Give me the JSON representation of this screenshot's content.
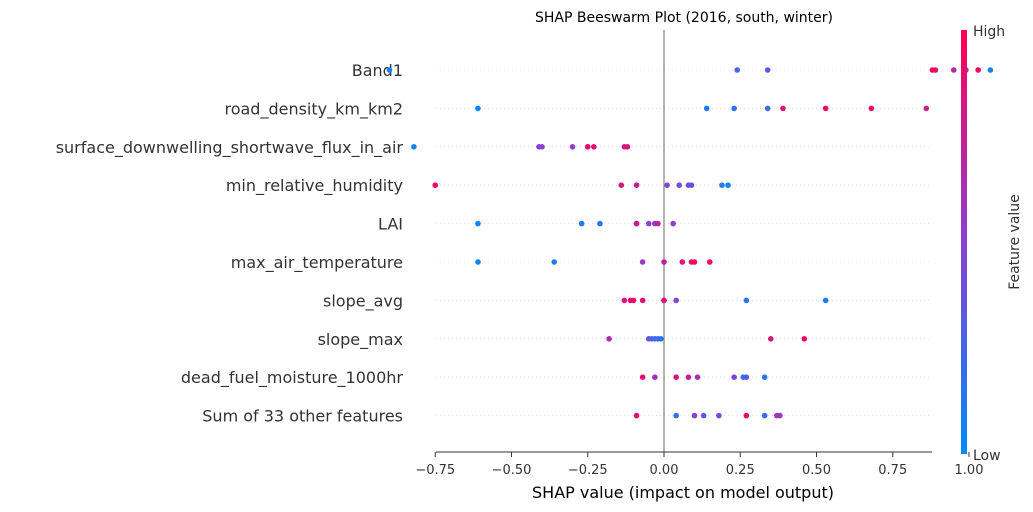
{
  "chart_data": {
    "type": "scatter",
    "subtype": "beeswarm",
    "title": "SHAP Beeswarm Plot (2016, south, winter)",
    "xlabel": "SHAP value (impact on model output)",
    "xlim": [
      -0.99,
      1.17
    ],
    "xticks": [
      -0.75,
      -0.5,
      -0.25,
      0.0,
      0.25,
      0.5,
      0.75,
      1.0
    ],
    "xtick_labels": [
      "−0.75",
      "−0.50",
      "−0.25",
      "0.00",
      "0.25",
      "0.50",
      "0.75",
      "1.00"
    ],
    "grid": false,
    "colorbar": {
      "label": "Feature value",
      "high_label": "High",
      "low_label": "Low",
      "low_color": "#008bfb",
      "high_color": "#ff0052"
    },
    "features": [
      {
        "name": "Band1",
        "points": [
          [
            -0.9,
            0.05
          ],
          [
            0.24,
            0.25
          ],
          [
            0.34,
            0.3
          ],
          [
            0.88,
            0.95
          ],
          [
            0.89,
            0.92
          ],
          [
            0.95,
            0.7
          ],
          [
            0.99,
            0.55
          ],
          [
            1.03,
            0.97
          ],
          [
            1.07,
            0.1
          ]
        ]
      },
      {
        "name": "road_density_km_km2",
        "points": [
          [
            -0.61,
            0.05
          ],
          [
            0.14,
            0.1
          ],
          [
            0.23,
            0.15
          ],
          [
            0.34,
            0.2
          ],
          [
            0.39,
            0.85
          ],
          [
            0.53,
            0.95
          ],
          [
            0.68,
            0.9
          ],
          [
            0.86,
            0.75
          ]
        ]
      },
      {
        "name": "surface_downwelling_shortwave_flux_in_air",
        "points": [
          [
            -0.82,
            0.05
          ],
          [
            -0.41,
            0.45
          ],
          [
            -0.4,
            0.5
          ],
          [
            -0.3,
            0.5
          ],
          [
            -0.25,
            0.6
          ],
          [
            -0.25,
            0.9
          ],
          [
            -0.23,
            0.88
          ],
          [
            -0.13,
            0.8
          ],
          [
            -0.12,
            0.85
          ]
        ]
      },
      {
        "name": "min_relative_humidity",
        "points": [
          [
            -0.75,
            0.95
          ],
          [
            -0.14,
            0.8
          ],
          [
            -0.09,
            0.75
          ],
          [
            0.01,
            0.45
          ],
          [
            0.05,
            0.4
          ],
          [
            0.08,
            0.45
          ],
          [
            0.09,
            0.4
          ],
          [
            0.19,
            0.1
          ],
          [
            0.21,
            0.05
          ]
        ]
      },
      {
        "name": "LAI",
        "points": [
          [
            -0.61,
            0.05
          ],
          [
            -0.27,
            0.1
          ],
          [
            -0.21,
            0.15
          ],
          [
            -0.09,
            0.7
          ],
          [
            -0.09,
            0.75
          ],
          [
            -0.05,
            0.45
          ],
          [
            -0.03,
            0.6
          ],
          [
            -0.02,
            0.7
          ],
          [
            0.03,
            0.5
          ]
        ]
      },
      {
        "name": "max_air_temperature",
        "points": [
          [
            -0.61,
            0.05
          ],
          [
            -0.36,
            0.1
          ],
          [
            -0.07,
            0.55
          ],
          [
            0.0,
            0.75
          ],
          [
            0.06,
            0.85
          ],
          [
            0.09,
            0.9
          ],
          [
            0.1,
            0.95
          ],
          [
            0.15,
            0.92
          ]
        ]
      },
      {
        "name": "slope_avg",
        "points": [
          [
            -0.13,
            0.85
          ],
          [
            -0.11,
            0.9
          ],
          [
            -0.1,
            0.92
          ],
          [
            -0.07,
            0.88
          ],
          [
            0.0,
            0.75
          ],
          [
            0.0,
            0.85
          ],
          [
            0.04,
            0.5
          ],
          [
            0.27,
            0.15
          ],
          [
            0.53,
            0.1
          ]
        ]
      },
      {
        "name": "slope_max",
        "points": [
          [
            -0.18,
            0.65
          ],
          [
            -0.05,
            0.35
          ],
          [
            -0.04,
            0.3
          ],
          [
            -0.03,
            0.2
          ],
          [
            -0.02,
            0.25
          ],
          [
            -0.01,
            0.15
          ],
          [
            0.35,
            0.85
          ],
          [
            0.46,
            0.95
          ]
        ]
      },
      {
        "name": "dead_fuel_moisture_1000hr",
        "points": [
          [
            -0.07,
            0.9
          ],
          [
            -0.03,
            0.6
          ],
          [
            0.04,
            0.85
          ],
          [
            0.08,
            0.75
          ],
          [
            0.11,
            0.65
          ],
          [
            0.23,
            0.45
          ],
          [
            0.26,
            0.2
          ],
          [
            0.27,
            0.3
          ],
          [
            0.33,
            0.15
          ]
        ]
      },
      {
        "name": "Sum of 33 other features",
        "points": [
          [
            -0.09,
            0.9
          ],
          [
            0.04,
            0.15
          ],
          [
            0.1,
            0.5
          ],
          [
            0.13,
            0.35
          ],
          [
            0.18,
            0.45
          ],
          [
            0.27,
            0.9
          ],
          [
            0.33,
            0.2
          ],
          [
            0.37,
            0.6
          ],
          [
            0.38,
            0.55
          ]
        ]
      }
    ]
  }
}
